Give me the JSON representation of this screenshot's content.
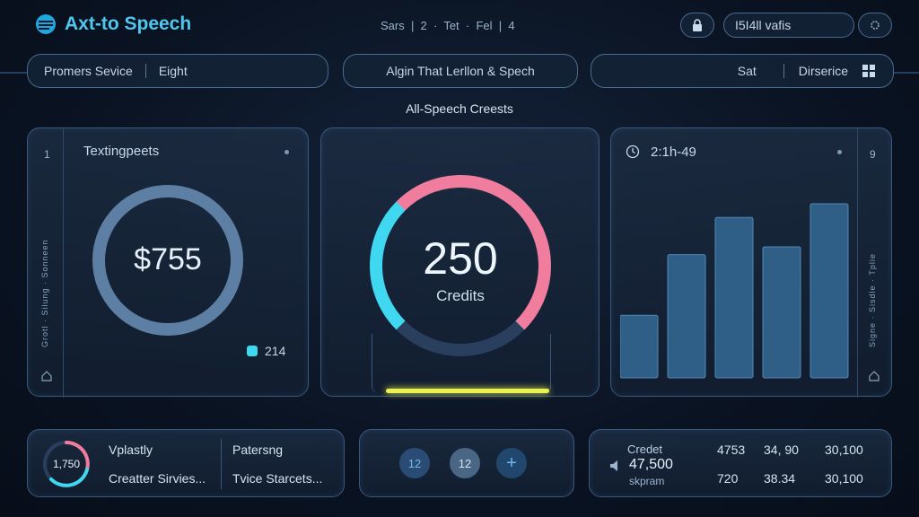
{
  "header": {
    "logo_text": "Axt-to Speech",
    "center_nav": "Sars  |  2  ·  Tet  ·  Fel  |  4",
    "account_label": "I5I4ll vafis"
  },
  "toolbar": {
    "left_item1": "Promers Sevice",
    "left_item2": "Eight",
    "center_label": "Algin That Lerllon & Spech",
    "right_item1": "Sat",
    "right_item2": "Dirserice"
  },
  "section_title": "All-Speech Creests",
  "card_left": {
    "title": "Textingpeets",
    "side_number": "1",
    "side_vertical_text": "Grotl · Silung · Sonneen",
    "ring_value": "$755",
    "ring_fraction": 1.0,
    "legend_value": "214"
  },
  "card_center": {
    "gauge_value": "250",
    "gauge_label": "Credits",
    "gauge_fraction": 0.72,
    "bar_fraction": 1.0
  },
  "card_right": {
    "time_label": "2:1h-49",
    "side_number": "9",
    "side_vertical_text": "Signe · Sisdle · Tplie",
    "bars": [
      0.32,
      0.63,
      0.82,
      0.67,
      0.89
    ]
  },
  "bottom_left": {
    "ring_value": "1,750",
    "label1": "Vplastly",
    "label2": "Patersng",
    "label3": "Creatter Sirvies...",
    "label4": "Tvice Starcets..."
  },
  "bottom_center": {
    "btn1": "12",
    "btn2": "12",
    "btn3": "+"
  },
  "bottom_right": {
    "label_top": "Credet",
    "big_value": "47,500",
    "label_bottom": "skpram",
    "row1": [
      "4753",
      "34, 90",
      "30,100"
    ],
    "row2": [
      "720",
      "38.34",
      "30,100"
    ]
  },
  "colors": {
    "accent_cyan": "#3fd8f0",
    "accent_pink": "#f07c9e",
    "accent_yellow": "#e9f24e",
    "ring_blue": "#5d7fa3"
  }
}
